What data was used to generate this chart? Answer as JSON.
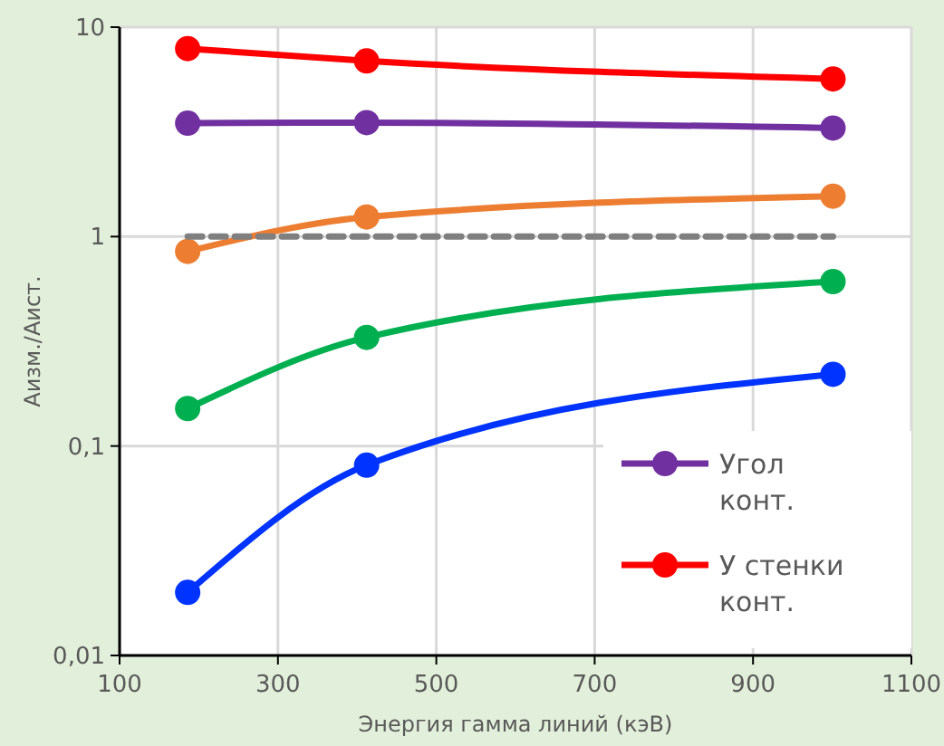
{
  "chart_data": {
    "type": "line",
    "xlabel": "Энергия гамма линий (кэВ)",
    "ylabel": "Аизм./Аист.",
    "x": [
      186,
      412,
      1001
    ],
    "xlim": [
      100,
      1100
    ],
    "xticks": [
      100,
      300,
      500,
      700,
      900,
      1100
    ],
    "ylim": [
      0.01,
      10
    ],
    "yticks": [
      {
        "value": 0.01,
        "label": "0,01"
      },
      {
        "value": 0.1,
        "label": "0,1"
      },
      1,
      10
    ],
    "log": "y",
    "grid": true,
    "legend": "bottom right",
    "marker": "circle",
    "series": [
      {
        "color": "#7030a0",
        "name": "Угол конт.",
        "values": [
          3.48,
          3.5,
          3.3
        ]
      },
      {
        "color": "#ff0000",
        "name": "У стенки конт.",
        "values": [
          7.9,
          6.9,
          5.66
        ]
      },
      {
        "color": "#ed7d31",
        "values": [
          0.85,
          1.24,
          1.56
        ]
      },
      {
        "color": "#00b050",
        "values": [
          0.151,
          0.33,
          0.61
        ]
      },
      {
        "color": "#0033ff",
        "values": [
          0.02,
          0.081,
          0.22
        ]
      },
      {
        "color": "#7f7f7f",
        "values": [
          1,
          1,
          1
        ],
        "marker": "none",
        "line_style": "dashed"
      }
    ]
  }
}
